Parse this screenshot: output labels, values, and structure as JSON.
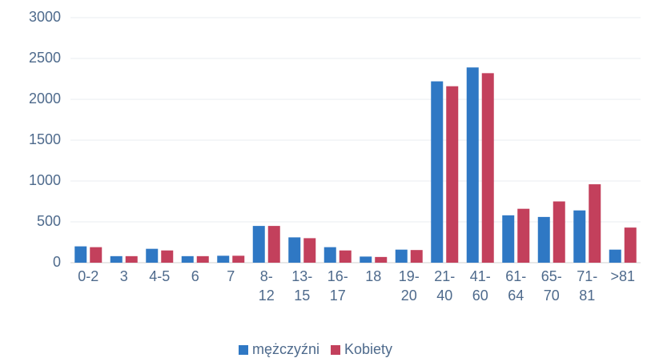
{
  "chart_data": {
    "type": "bar",
    "categories": [
      "0-2",
      "3",
      "4-5",
      "6",
      "7",
      "8-12",
      "13-15",
      "16-17",
      "18",
      "19-20",
      "21-40",
      "41-60",
      "61-64",
      "65-70",
      "71-81",
      ">81"
    ],
    "series": [
      {
        "name": "mężczyźni",
        "color": "#2f78c4",
        "values": [
          200,
          80,
          170,
          80,
          85,
          450,
          310,
          190,
          75,
          160,
          2220,
          2390,
          580,
          560,
          640,
          160
        ]
      },
      {
        "name": "Kobiety",
        "color": "#c3405c",
        "values": [
          190,
          80,
          150,
          80,
          85,
          450,
          300,
          150,
          70,
          155,
          2160,
          2320,
          660,
          750,
          960,
          430
        ]
      }
    ],
    "ylim": [
      0,
      3000
    ],
    "yticks": [
      0,
      500,
      1000,
      1500,
      2000,
      2500,
      3000
    ],
    "grid": true,
    "legend": "bottom"
  }
}
